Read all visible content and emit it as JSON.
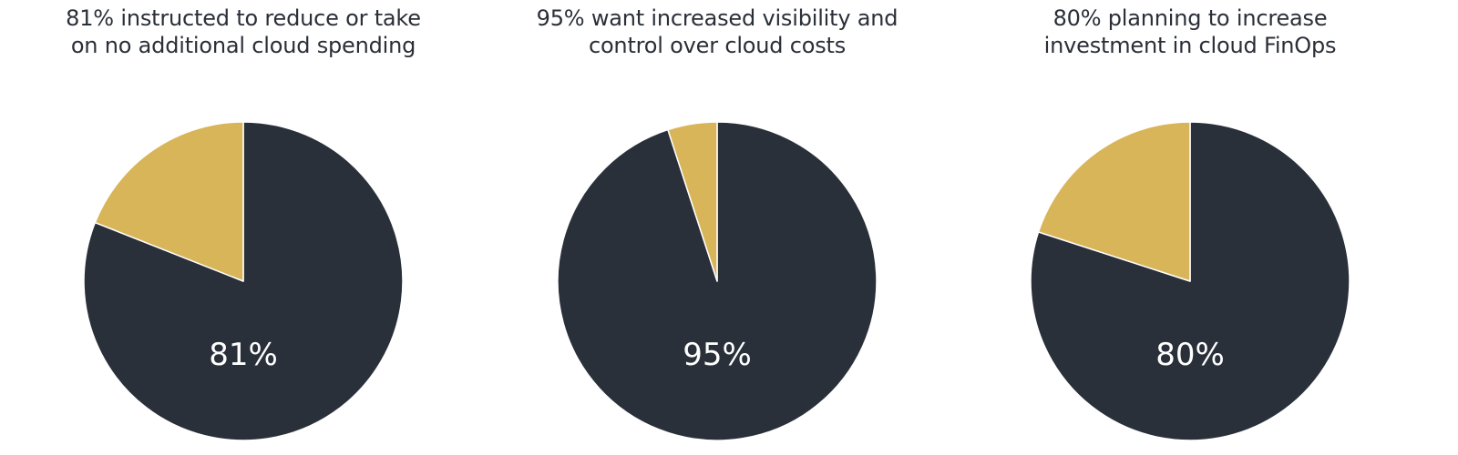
{
  "colors": {
    "primary": "#29303a",
    "secondary": "#d9b55a",
    "label": "#ffffff",
    "title": "#2a2f38"
  },
  "chart_data": [
    {
      "type": "pie",
      "title": "81% instructed to reduce or take\non no additional cloud spending",
      "slices": [
        {
          "label": "",
          "value": 81
        },
        {
          "label": "",
          "value": 19
        }
      ],
      "data_label": "81%"
    },
    {
      "type": "pie",
      "title": "95% want increased visibility and\ncontrol over cloud costs",
      "slices": [
        {
          "label": "",
          "value": 95
        },
        {
          "label": "",
          "value": 5
        }
      ],
      "data_label": "95%"
    },
    {
      "type": "pie",
      "title": "80% planning to increase\ninvestment in cloud FinOps",
      "slices": [
        {
          "label": "",
          "value": 80
        },
        {
          "label": "",
          "value": 20
        }
      ],
      "data_label": "80%"
    }
  ]
}
